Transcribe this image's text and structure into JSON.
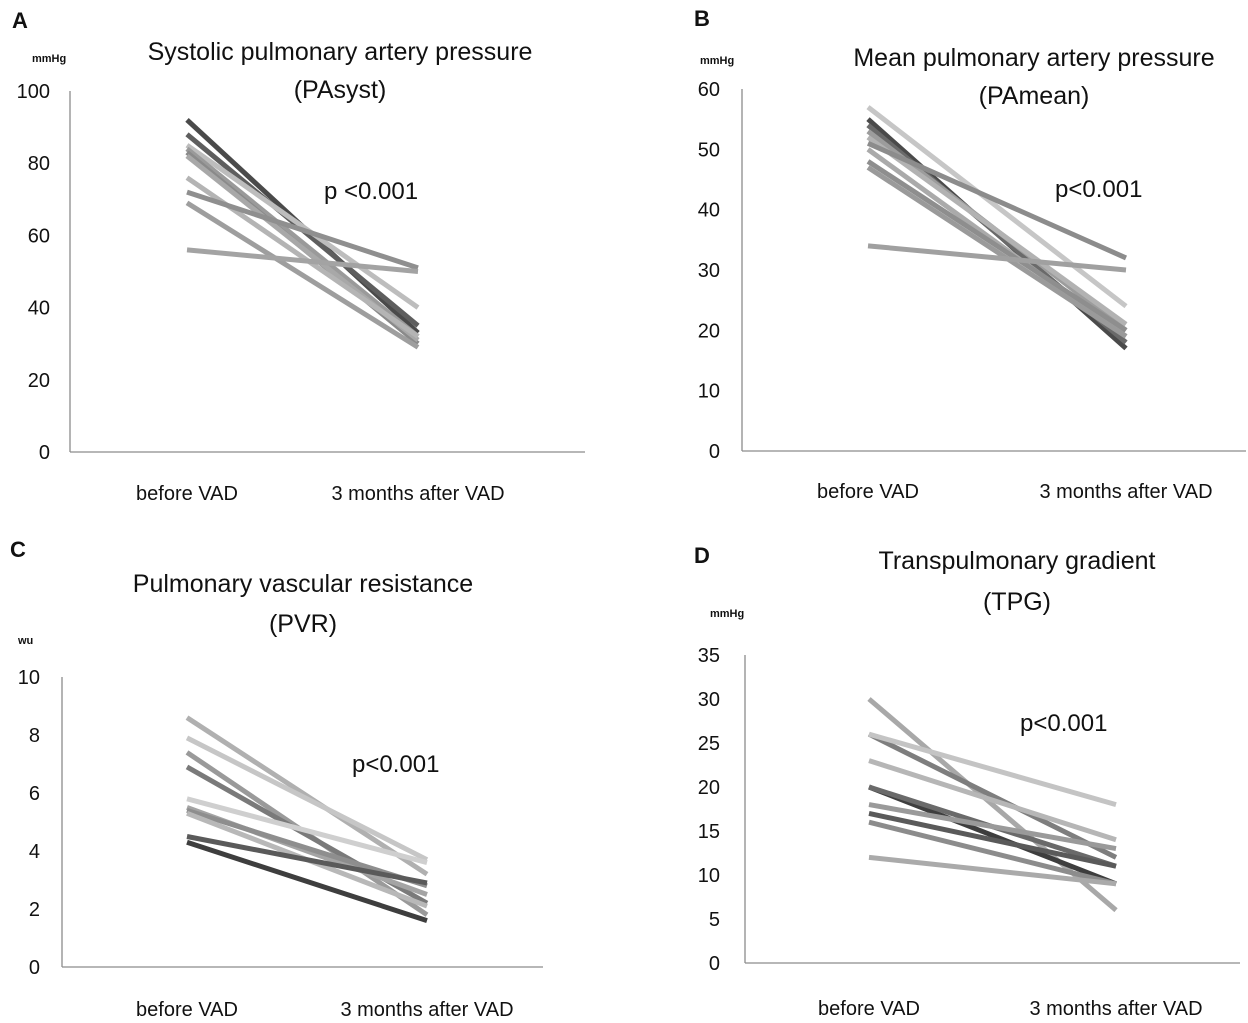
{
  "chart_data": [
    {
      "type": "line",
      "panel": "A",
      "title_lines": [
        "Systolic pulmonary artery pressure",
        "(PAsyst)"
      ],
      "unit": "mmHg",
      "categories": [
        "before VAD",
        "3 months after VAD"
      ],
      "ylim": [
        0,
        100
      ],
      "yticks": [
        "100",
        "80",
        "60",
        "40",
        "20",
        "0"
      ],
      "annotation": "p <0.001",
      "grid": false,
      "legend": "none",
      "series": [
        {
          "values": [
            92,
            33
          ],
          "color": "#4a4a4a"
        },
        {
          "values": [
            88,
            35
          ],
          "color": "#5e5e5e"
        },
        {
          "values": [
            85,
            40
          ],
          "color": "#bdbdbd"
        },
        {
          "values": [
            84,
            32
          ],
          "color": "#9a9a9a"
        },
        {
          "values": [
            83,
            30
          ],
          "color": "#8a8a8a"
        },
        {
          "values": [
            82,
            31
          ],
          "color": "#a8a8a8"
        },
        {
          "values": [
            76,
            32
          ],
          "color": "#b4b4b4"
        },
        {
          "values": [
            72,
            51
          ],
          "color": "#8f8f8f"
        },
        {
          "values": [
            69,
            29
          ],
          "color": "#9e9e9e"
        },
        {
          "values": [
            56,
            50
          ],
          "color": "#a3a3a3"
        }
      ]
    },
    {
      "type": "line",
      "panel": "B",
      "title_lines": [
        "Mean pulmonary artery pressure",
        "(PAmean)"
      ],
      "unit": "mmHg",
      "categories": [
        "before VAD",
        "3 months after VAD"
      ],
      "ylim": [
        0,
        60
      ],
      "yticks": [
        "60",
        "50",
        "40",
        "30",
        "20",
        "10",
        "0"
      ],
      "annotation": "p<0.001",
      "grid": false,
      "legend": "none",
      "series": [
        {
          "values": [
            57,
            24
          ],
          "color": "#c6c6c6"
        },
        {
          "values": [
            55,
            17
          ],
          "color": "#4a4a4a"
        },
        {
          "values": [
            54,
            18
          ],
          "color": "#6a6a6a"
        },
        {
          "values": [
            53,
            20
          ],
          "color": "#9c9c9c"
        },
        {
          "values": [
            52,
            21
          ],
          "color": "#b2b2b2"
        },
        {
          "values": [
            51,
            32
          ],
          "color": "#8c8c8c"
        },
        {
          "values": [
            50,
            19
          ],
          "color": "#aaaaaa"
        },
        {
          "values": [
            48,
            20
          ],
          "color": "#8e8e8e"
        },
        {
          "values": [
            47,
            19
          ],
          "color": "#9a9a9a"
        },
        {
          "values": [
            34,
            30
          ],
          "color": "#a0a0a0"
        }
      ]
    },
    {
      "type": "line",
      "panel": "C",
      "title_lines": [
        "Pulmonary vascular resistance",
        "(PVR)"
      ],
      "unit": "wu",
      "categories": [
        "before VAD",
        "3 months after VAD"
      ],
      "ylim": [
        0,
        10
      ],
      "yticks": [
        "10",
        "8",
        "6",
        "4",
        "2",
        "0"
      ],
      "annotation": "p<0.001",
      "grid": false,
      "legend": "none",
      "series": [
        {
          "values": [
            8.6,
            3.2
          ],
          "color": "#b0b0b0"
        },
        {
          "values": [
            7.9,
            3.7
          ],
          "color": "#c6c6c6"
        },
        {
          "values": [
            7.4,
            1.8
          ],
          "color": "#9a9a9a"
        },
        {
          "values": [
            6.9,
            2.2
          ],
          "color": "#7a7a7a"
        },
        {
          "values": [
            5.8,
            3.6
          ],
          "color": "#cfcfcf"
        },
        {
          "values": [
            5.5,
            2.5
          ],
          "color": "#a4a4a4"
        },
        {
          "values": [
            5.4,
            2.8
          ],
          "color": "#8e8e8e"
        },
        {
          "values": [
            5.3,
            2.1
          ],
          "color": "#b8b8b8"
        },
        {
          "values": [
            4.5,
            2.9
          ],
          "color": "#5a5a5a"
        },
        {
          "values": [
            4.3,
            1.6
          ],
          "color": "#3e3e3e"
        }
      ]
    },
    {
      "type": "line",
      "panel": "D",
      "title_lines": [
        "Transpulmonary gradient",
        "(TPG)"
      ],
      "unit": "mmHg",
      "categories": [
        "before VAD",
        "3 months after  VAD"
      ],
      "ylim": [
        0,
        35
      ],
      "yticks": [
        "35",
        "30",
        "25",
        "20",
        "15",
        "10",
        "5",
        "0"
      ],
      "annotation": "p<0.001",
      "grid": false,
      "legend": "none",
      "series": [
        {
          "values": [
            30,
            6
          ],
          "color": "#a8a8a8"
        },
        {
          "values": [
            26,
            12
          ],
          "color": "#7e7e7e"
        },
        {
          "values": [
            26,
            18
          ],
          "color": "#c4c4c4"
        },
        {
          "values": [
            23,
            14
          ],
          "color": "#b6b6b6"
        },
        {
          "values": [
            20,
            9
          ],
          "color": "#3e3e3e"
        },
        {
          "values": [
            20,
            11
          ],
          "color": "#6a6a6a"
        },
        {
          "values": [
            18,
            13
          ],
          "color": "#9a9a9a"
        },
        {
          "values": [
            17,
            11
          ],
          "color": "#5a5a5a"
        },
        {
          "values": [
            16,
            9
          ],
          "color": "#8c8c8c"
        },
        {
          "values": [
            12,
            9
          ],
          "color": "#aaaaaa"
        }
      ]
    }
  ]
}
